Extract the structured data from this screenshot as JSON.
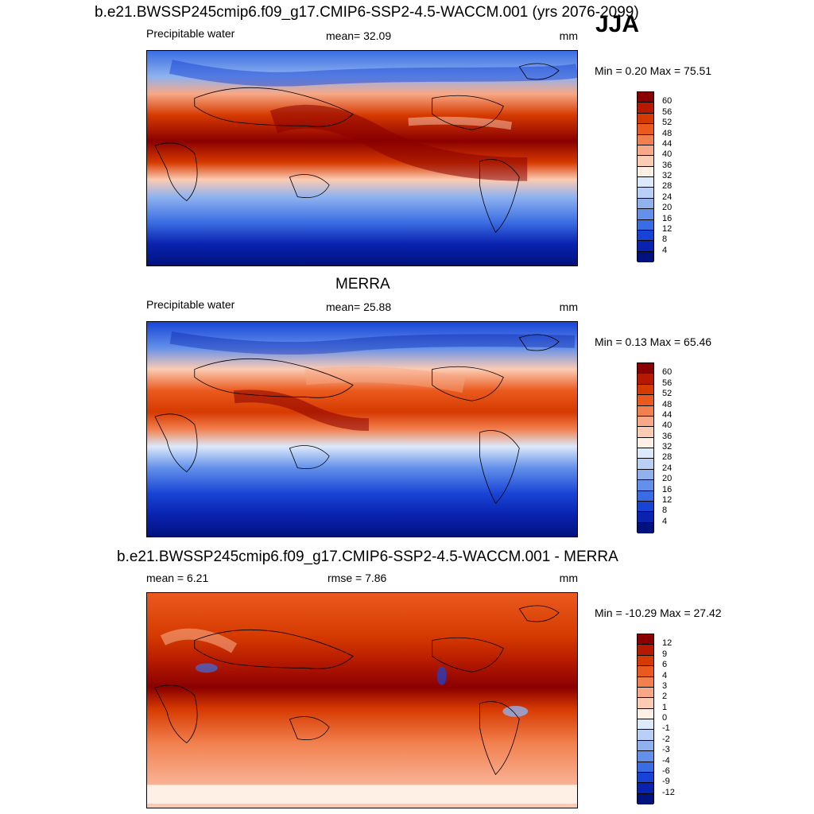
{
  "season": "JJA",
  "panels": [
    {
      "title": "b.e21.BWSSP245cmip6.f09_g17.CMIP6-SSP2-4.5-WACCM.001 (yrs 2076-2099)",
      "left_label": "Precipitable water",
      "center_label": "mean=  32.09",
      "units": "mm",
      "minmax": "Min =   0.20 Max =  75.51",
      "colorbar": {
        "labels": [
          "60",
          "56",
          "52",
          "48",
          "44",
          "40",
          "36",
          "32",
          "28",
          "24",
          "20",
          "16",
          "12",
          "8",
          "4"
        ],
        "colors": [
          "#8a0000",
          "#b51a00",
          "#d63a00",
          "#ea5a1e",
          "#f2804f",
          "#f7a886",
          "#fccbb3",
          "#fff0e6",
          "#dce9fa",
          "#b8d0f5",
          "#8fb2ef",
          "#6390ea",
          "#3a6de3",
          "#1844d6",
          "#0a22b0",
          "#00127d"
        ]
      },
      "map_type": "ssp"
    },
    {
      "title": "MERRA",
      "left_label": "Precipitable water",
      "center_label": "mean=  25.88",
      "units": "mm",
      "minmax": "Min =   0.13 Max =  65.46",
      "colorbar": {
        "labels": [
          "60",
          "56",
          "52",
          "48",
          "44",
          "40",
          "36",
          "32",
          "28",
          "24",
          "20",
          "16",
          "12",
          "8",
          "4"
        ],
        "colors": [
          "#8a0000",
          "#b51a00",
          "#d63a00",
          "#ea5a1e",
          "#f2804f",
          "#f7a886",
          "#fccbb3",
          "#fff0e6",
          "#dce9fa",
          "#b8d0f5",
          "#8fb2ef",
          "#6390ea",
          "#3a6de3",
          "#1844d6",
          "#0a22b0",
          "#00127d"
        ]
      },
      "map_type": "merra"
    },
    {
      "title": "b.e21.BWSSP245cmip6.f09_g17.CMIP6-SSP2-4.5-WACCM.001 - MERRA",
      "left_label": "mean =   6.21",
      "center_label": "rmse =   7.86",
      "units": "mm",
      "minmax": "Min = -10.29 Max =  27.42",
      "colorbar": {
        "labels": [
          "12",
          "9",
          "6",
          "4",
          "3",
          "2",
          "1",
          "0",
          "-1",
          "-2",
          "-3",
          "-4",
          "-6",
          "-9",
          "-12"
        ],
        "colors": [
          "#8a0000",
          "#b51a00",
          "#d63a00",
          "#ea5a1e",
          "#f2804f",
          "#f7a886",
          "#fccbb3",
          "#fff0e6",
          "#dce9fa",
          "#b8d0f5",
          "#8fb2ef",
          "#6390ea",
          "#3a6de3",
          "#1844d6",
          "#0a22b0",
          "#00127d"
        ]
      },
      "map_type": "diff"
    }
  ]
}
